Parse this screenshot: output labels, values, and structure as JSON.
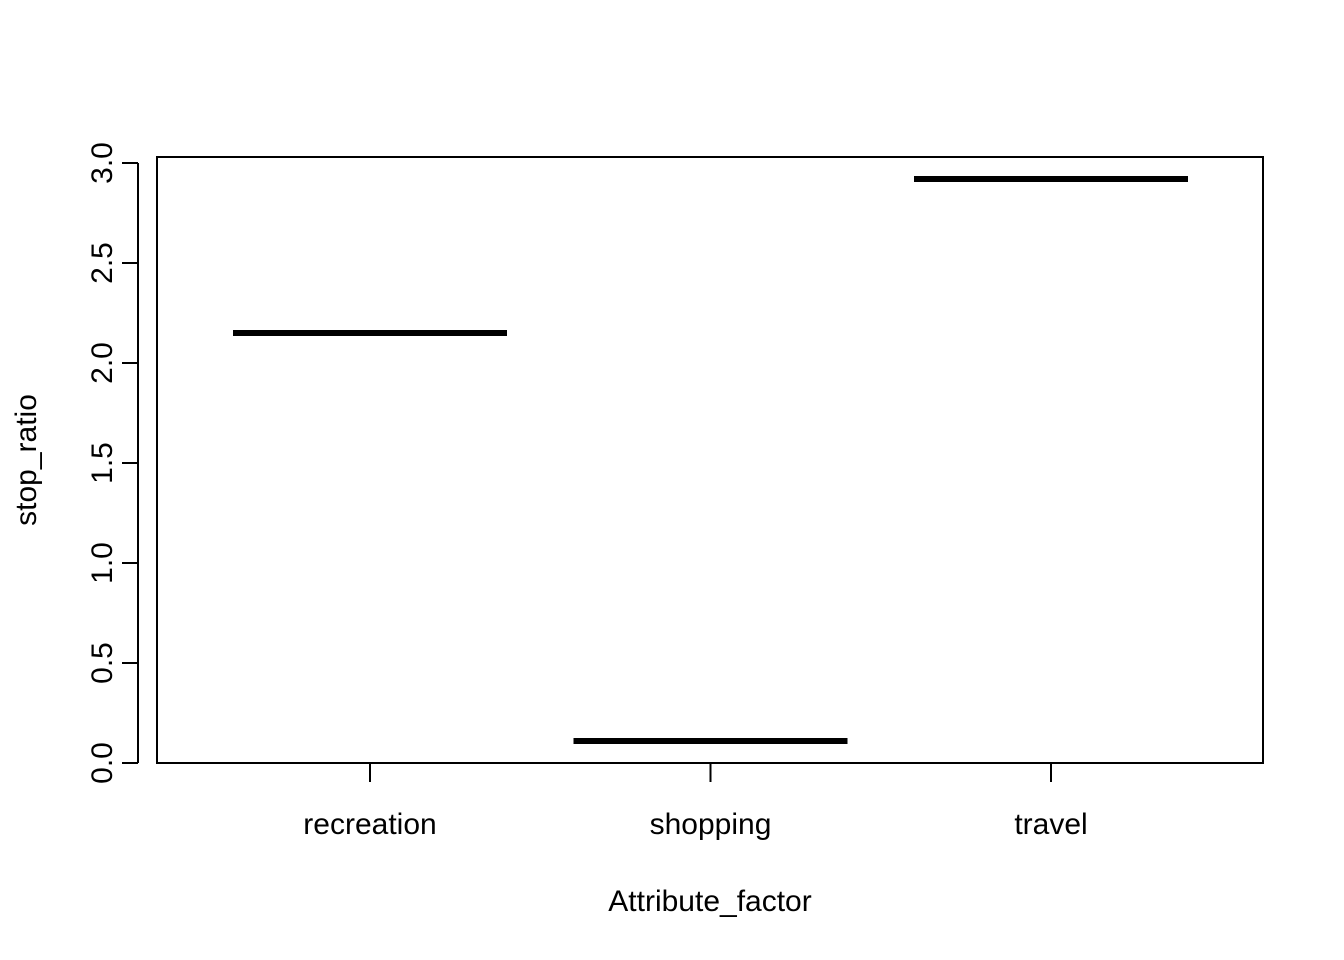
{
  "chart_data": {
    "type": "bar",
    "categories": [
      "recreation",
      "shopping",
      "travel"
    ],
    "values": [
      2.15,
      0.11,
      2.92
    ],
    "xlabel": "Attribute_factor",
    "ylabel": "stop_ratio",
    "ylim": [
      0,
      3.0
    ],
    "yticks": [
      "0.0",
      "0.5",
      "1.0",
      "1.5",
      "2.0",
      "2.5",
      "3.0"
    ],
    "grid": false,
    "legend": "none",
    "mark_color": "#000000"
  }
}
